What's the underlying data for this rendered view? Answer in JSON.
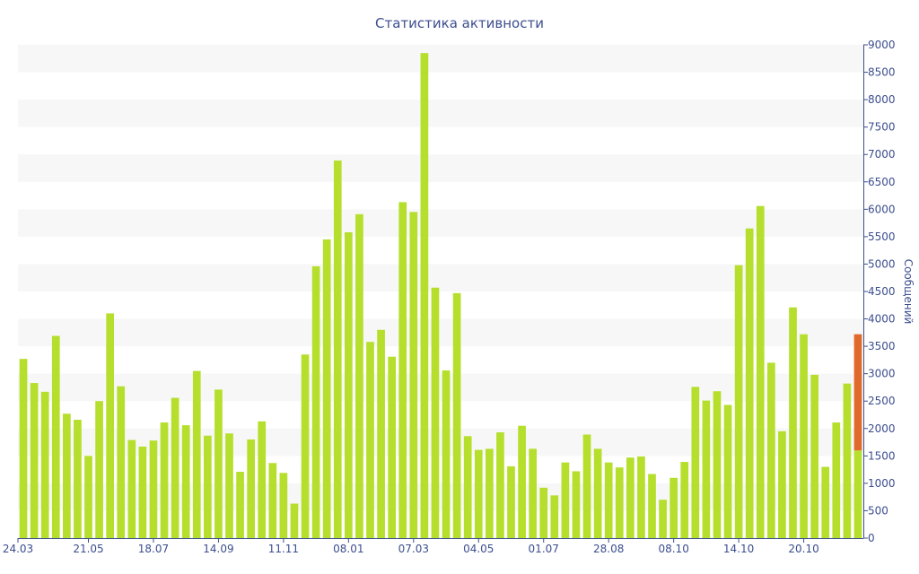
{
  "chart_data": {
    "type": "bar",
    "title": "Статистика активности",
    "ylabel": "Сообщений",
    "xlabel": "",
    "ylim": [
      0,
      9000
    ],
    "y_ticks": [
      0,
      500,
      1000,
      1500,
      2000,
      2500,
      3000,
      3500,
      4000,
      4500,
      5000,
      5500,
      6000,
      6500,
      7000,
      7500,
      8000,
      8500,
      9000
    ],
    "y_axis_side": "right",
    "grid": "alternating horizontal bands",
    "x_tick_labels": [
      {
        "index": 0,
        "label": "24.03"
      },
      {
        "index": 6,
        "label": "21.05"
      },
      {
        "index": 12,
        "label": "18.07"
      },
      {
        "index": 18,
        "label": "14.09"
      },
      {
        "index": 24,
        "label": "11.11"
      },
      {
        "index": 30,
        "label": "08.01"
      },
      {
        "index": 36,
        "label": "07.03"
      },
      {
        "index": 42,
        "label": "04.05"
      },
      {
        "index": 48,
        "label": "01.07"
      },
      {
        "index": 54,
        "label": "28.08"
      },
      {
        "index": 60,
        "label": "08.10"
      },
      {
        "index": 66,
        "label": "14.10"
      },
      {
        "index": 72,
        "label": "20.10"
      }
    ],
    "series": [
      {
        "color": "#b5df2c",
        "values": [
          3270,
          2830,
          2670,
          3690,
          2270,
          2160,
          1500,
          2500,
          4100,
          2770,
          1790,
          1670,
          1780,
          2110,
          2560,
          2060,
          3050,
          1870,
          2710,
          1910,
          1210,
          1800,
          2130,
          1370,
          1190,
          630,
          3350,
          4960,
          5450,
          6890,
          5580,
          5910,
          3580,
          3800,
          3310,
          6130,
          5950,
          8850,
          4570,
          3060,
          4470,
          1860,
          1610,
          1630,
          1930,
          1310,
          2050,
          1630,
          920,
          780,
          1380,
          1220,
          1890,
          1630,
          1380,
          1290,
          1470,
          1490,
          1170,
          700,
          1100,
          1390,
          2760,
          2510,
          2680,
          2430,
          4980,
          5650,
          6060,
          3200,
          1950,
          4210,
          3720,
          2980,
          1300,
          2110,
          2820,
          1600
        ]
      }
    ],
    "highlight": {
      "color": "#e06a2c",
      "from": 1600,
      "to": 3720
    }
  }
}
